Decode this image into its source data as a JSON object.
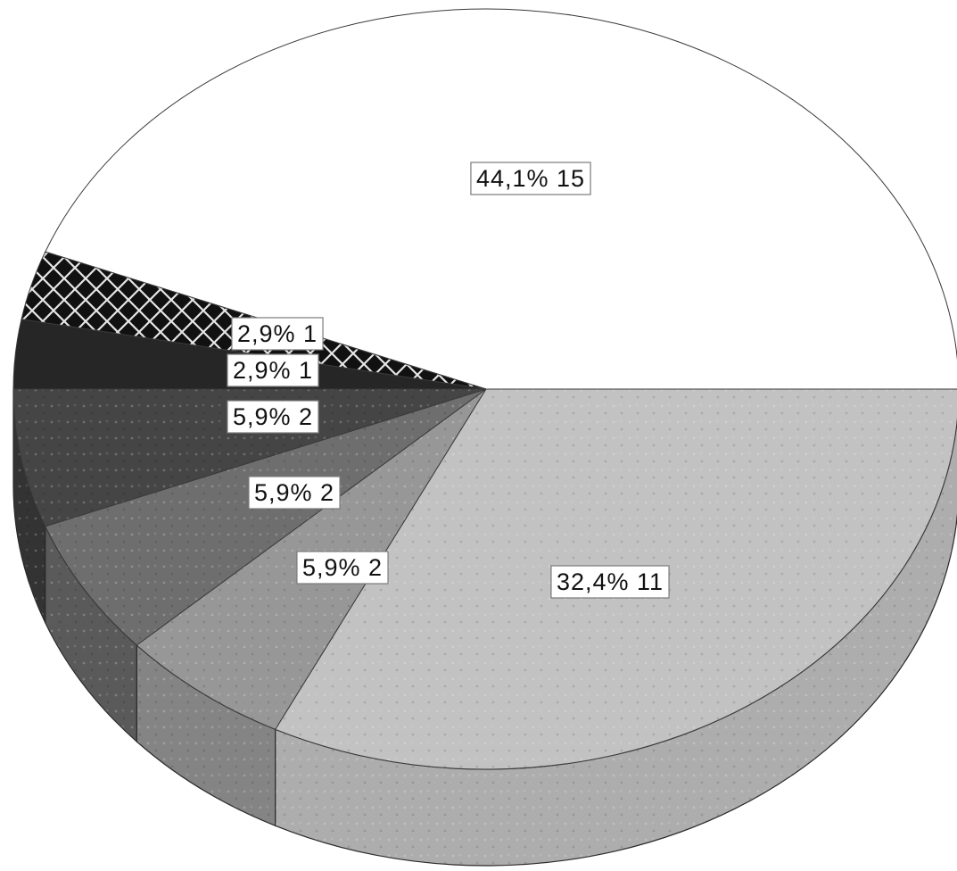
{
  "chart_data": {
    "type": "pie",
    "three_d": true,
    "start_angle_deg": 0,
    "direction": "counterclockwise-from-right",
    "slices": [
      {
        "percent_label": "44,1%",
        "count_label": "15",
        "value": 15,
        "color": "#ffffff",
        "side_color": "#f2f2f2",
        "pattern": "none"
      },
      {
        "percent_label": "2,9%",
        "count_label": "1",
        "value": 1,
        "color": "#111111",
        "side_color": "#0a0a0a",
        "pattern": "crosshatch"
      },
      {
        "percent_label": "2,9%",
        "count_label": "1",
        "value": 1,
        "color": "#262626",
        "side_color": "#1a1a1a",
        "pattern": "none"
      },
      {
        "percent_label": "5,9%",
        "count_label": "2",
        "value": 2,
        "color": "#454545",
        "side_color": "#333333",
        "pattern": "dots"
      },
      {
        "percent_label": "5,9%",
        "count_label": "2",
        "value": 2,
        "color": "#6e6e6e",
        "side_color": "#5a5a5a",
        "pattern": "dots"
      },
      {
        "percent_label": "5,9%",
        "count_label": "2",
        "value": 2,
        "color": "#979797",
        "side_color": "#848484",
        "pattern": "dots"
      },
      {
        "percent_label": "32,4%",
        "count_label": "11",
        "value": 11,
        "color": "#c2c2c2",
        "side_color": "#adadad",
        "pattern": "dots"
      }
    ],
    "title": "",
    "legend": "none"
  }
}
